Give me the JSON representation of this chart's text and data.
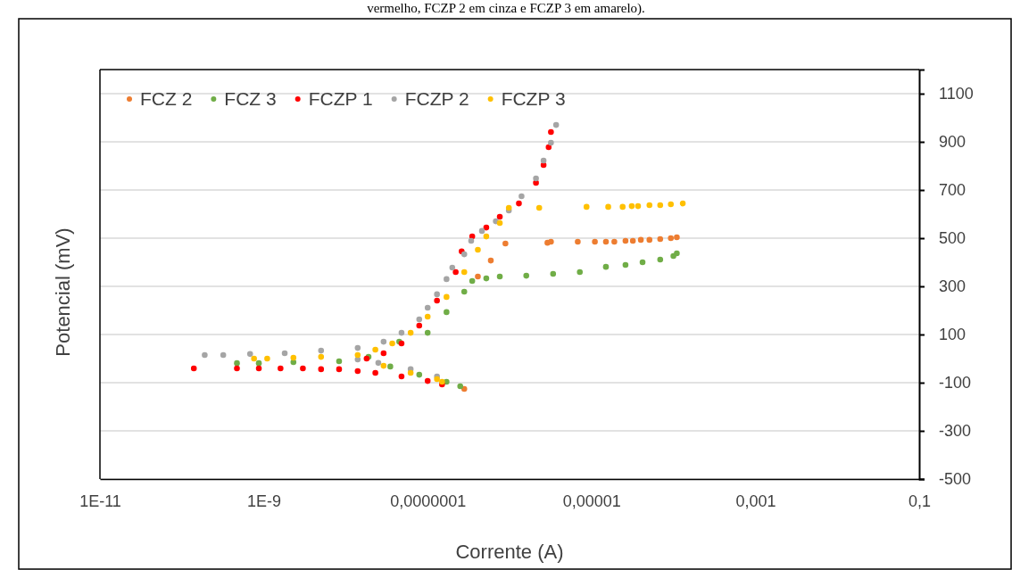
{
  "chart_data": {
    "type": "scatter",
    "xlabel": "Corrente (A)",
    "ylabel": "Potencial (mV)",
    "annotations": [
      "vermelho, FCZP 2 em cinza e FCZP 3 em amarelo)."
    ],
    "log": "x",
    "grid": "y",
    "legend": "top left",
    "marker": "circle",
    "xlim": [
      1e-11,
      0.1
    ],
    "xticks": [
      {
        "value": 1e-11,
        "label": "1E-11"
      },
      {
        "value": 1e-09,
        "label": "1E-9"
      },
      {
        "value": 1e-07,
        "label": "0,0000001"
      },
      {
        "value": 1e-05,
        "label": "0,00001"
      },
      {
        "value": 0.001,
        "label": "0,001"
      },
      {
        "value": 0.1,
        "label": "0,1"
      }
    ],
    "ylim": [
      -500,
      1200
    ],
    "yticks": [
      -500,
      -300,
      -100,
      100,
      300,
      500,
      700,
      900,
      1100
    ],
    "series": [
      {
        "name": "FCZ 2",
        "color": "#ed7d31",
        "x": [
          2.8e-07,
          4.1e-07,
          5.9e-07,
          8.9e-07,
          2.9e-06,
          3.2e-06,
          6.8e-06,
          1.1e-05,
          1.5e-05,
          1.9e-05,
          2.6e-05,
          3.2e-05,
          4e-05,
          5.1e-05,
          6.9e-05,
          9.3e-05,
          0.00011
        ],
        "values": [
          -126,
          341,
          407,
          478,
          481,
          485,
          485,
          485,
          485,
          485,
          489,
          489,
          493,
          493,
          496,
          500,
          504
        ]
      },
      {
        "name": "FCZ 3",
        "color": "#70ad47",
        "x": [
          4.7e-10,
          8.7e-10,
          2.3e-09,
          8.3e-09,
          3.5e-08,
          7.9e-08,
          1.7e-07,
          2.5e-07,
          1.9e-08,
          4.5e-08,
          1e-07,
          1.7e-07,
          2.8e-07,
          3.5e-07,
          5.2e-07,
          7.6e-07,
          1.6e-06,
          3.4e-06,
          7.2e-06,
          1.5e-05,
          2.6e-05,
          4.2e-05,
          6.9e-05,
          0.0001,
          0.00011
        ],
        "values": [
          -19,
          -19,
          -15,
          -11,
          -33,
          -67,
          -96,
          -115,
          7,
          70,
          107,
          193,
          278,
          322,
          333,
          341,
          344,
          352,
          359,
          381,
          389,
          400,
          411,
          426,
          437
        ]
      },
      {
        "name": "FCZP 1",
        "color": "#ff0000",
        "x": [
          1.4e-10,
          4.7e-10,
          8.7e-10,
          1.6e-09,
          3e-09,
          5e-09,
          8.3e-09,
          1.4e-08,
          2.3e-08,
          4.8e-08,
          1e-07,
          1.5e-07,
          1.8e-08,
          2.9e-08,
          4.8e-08,
          7.9e-08,
          1.3e-07,
          2.2e-07,
          2.6e-07,
          3.5e-07,
          5.2e-07,
          7.6e-07,
          1.3e-06,
          2.1e-06,
          2.6e-06,
          3e-06,
          3.2e-06
        ],
        "values": [
          -41,
          -41,
          -41,
          -41,
          -41,
          -44,
          -44,
          -52,
          -59,
          -74,
          -93,
          -107,
          0,
          22,
          63,
          137,
          241,
          359,
          445,
          507,
          544,
          589,
          644,
          730,
          804,
          878,
          941
        ]
      },
      {
        "name": "FCZP 2",
        "color": "#a5a5a5",
        "x": [
          1.9e-10,
          3.2e-10,
          6.8e-10,
          1.8e-09,
          5e-09,
          1.4e-08,
          2.9e-08,
          4.8e-08,
          7.9e-08,
          1e-07,
          1.3e-07,
          1.7e-07,
          2e-07,
          2.8e-07,
          3.4e-07,
          4.6e-07,
          6.8e-07,
          9.8e-07,
          1.4e-06,
          2.1e-06,
          2.6e-06,
          3.2e-06,
          3.7e-06,
          1.4e-08,
          2.5e-08,
          6.2e-08,
          1.3e-07
        ],
        "values": [
          15,
          15,
          19,
          22,
          33,
          44,
          70,
          107,
          163,
          211,
          267,
          330,
          378,
          433,
          489,
          530,
          570,
          615,
          674,
          748,
          822,
          896,
          970,
          -4,
          -18,
          -44,
          -74
        ]
      },
      {
        "name": "FCZP 3",
        "color": "#ffc000",
        "x": [
          7.6e-10,
          1.1e-09,
          2.3e-09,
          5e-09,
          1.4e-08,
          2.3e-08,
          3.7e-08,
          6.2e-08,
          1e-07,
          1.7e-07,
          2.8e-07,
          4.1e-07,
          5.2e-07,
          7.6e-07,
          9.8e-07,
          2.3e-06,
          8.7e-06,
          1.6e-05,
          2.4e-05,
          3.1e-05,
          3.7e-05,
          5.1e-05,
          6.9e-05,
          9.3e-05,
          0.00013,
          2.9e-08,
          6.2e-08,
          1.3e-07,
          1.5e-07
        ],
        "values": [
          0,
          0,
          4,
          7,
          15,
          37,
          63,
          107,
          174,
          256,
          359,
          452,
          507,
          563,
          626,
          626,
          630,
          630,
          630,
          633,
          633,
          637,
          637,
          641,
          644,
          -30,
          -59,
          -85,
          -96
        ]
      }
    ]
  }
}
